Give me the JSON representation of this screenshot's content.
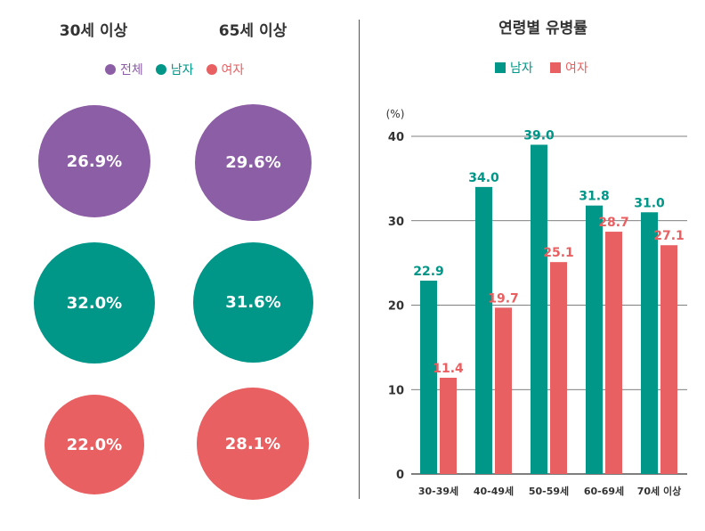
{
  "chart_data": [
    {
      "type": "bubble",
      "groups": [
        "30세 이상",
        "65세 이상"
      ],
      "legend": [
        {
          "label": "전체",
          "color": "#8c5ea5"
        },
        {
          "label": "남자",
          "color": "#009688"
        },
        {
          "label": "여자",
          "color": "#e86062"
        }
      ],
      "values": {
        "30세 이상": [
          "26.9%",
          "32.0%",
          "22.0%"
        ],
        "65세 이상": [
          "29.6%",
          "31.6%",
          "28.1%"
        ]
      }
    },
    {
      "type": "bar",
      "title": "연령별 유병률",
      "ylabel": "(%)",
      "ylim": [
        0,
        40
      ],
      "yticks": [
        0,
        10,
        20,
        30,
        40
      ],
      "categories": [
        "30-39세",
        "40-49세",
        "50-59세",
        "60-69세",
        "70세 이상"
      ],
      "series": [
        {
          "name": "남자",
          "color": "#009688",
          "values": [
            22.9,
            34.0,
            39.0,
            31.8,
            31.0
          ]
        },
        {
          "name": "여자",
          "color": "#e86062",
          "values": [
            11.4,
            19.7,
            25.1,
            28.7,
            27.1
          ]
        }
      ],
      "legend_placement": "top"
    }
  ]
}
